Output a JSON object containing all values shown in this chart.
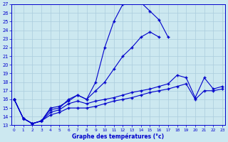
{
  "title": "Graphe des températures (°c)",
  "bg_color": "#cce8f0",
  "line_color": "#0000cc",
  "grid_color": "#aaccdd",
  "xlim": [
    0,
    23
  ],
  "ylim": [
    13,
    27
  ],
  "yticks": [
    13,
    14,
    15,
    16,
    17,
    18,
    19,
    20,
    21,
    22,
    23,
    24,
    25,
    26,
    27
  ],
  "xticks": [
    0,
    1,
    2,
    3,
    4,
    5,
    6,
    7,
    8,
    9,
    10,
    11,
    12,
    13,
    14,
    15,
    16,
    17,
    18,
    19,
    20,
    21,
    22,
    23
  ],
  "line1_x": [
    0,
    1,
    2,
    3,
    4,
    5,
    6,
    7,
    8,
    9,
    10,
    11,
    12,
    13,
    14,
    15,
    16,
    17,
    18
  ],
  "line1_y": [
    16.0,
    13.8,
    13.2,
    13.5,
    15.0,
    15.2,
    15.8,
    16.5,
    16.0,
    18.0,
    22.0,
    25.0,
    27.0,
    27.2,
    27.2,
    26.2,
    25.2,
    23.2,
    null
  ],
  "line2_x": [
    0,
    1,
    2,
    3,
    4,
    5,
    6,
    7,
    8,
    9,
    10,
    11,
    12,
    13,
    14,
    15,
    16,
    17,
    18
  ],
  "line2_y": [
    16.0,
    13.8,
    13.2,
    13.5,
    14.8,
    15.0,
    16.0,
    16.5,
    16.0,
    17.0,
    18.0,
    19.5,
    21.0,
    22.0,
    23.2,
    23.8,
    23.2,
    null,
    null
  ],
  "line3_x": [
    0,
    1,
    2,
    3,
    4,
    5,
    6,
    7,
    8,
    9,
    10,
    11,
    12,
    13,
    14,
    15,
    16,
    17,
    18,
    19,
    20,
    21,
    22,
    23
  ],
  "line3_y": [
    16.0,
    13.8,
    13.2,
    13.5,
    14.5,
    14.8,
    15.5,
    15.8,
    15.5,
    15.8,
    16.0,
    16.2,
    16.5,
    16.8,
    17.0,
    17.2,
    17.5,
    17.8,
    18.8,
    18.5,
    16.2,
    18.5,
    17.2,
    17.5
  ],
  "line4_x": [
    0,
    1,
    2,
    3,
    4,
    5,
    6,
    7,
    8,
    9,
    10,
    11,
    12,
    13,
    14,
    15,
    16,
    17,
    18,
    19,
    20,
    21,
    22,
    23
  ],
  "line4_y": [
    16.0,
    13.8,
    13.2,
    13.5,
    14.2,
    14.5,
    15.0,
    15.0,
    15.0,
    15.2,
    15.5,
    15.8,
    16.0,
    16.2,
    16.5,
    16.8,
    17.0,
    17.2,
    17.5,
    17.8,
    16.0,
    17.0,
    17.0,
    17.2
  ]
}
